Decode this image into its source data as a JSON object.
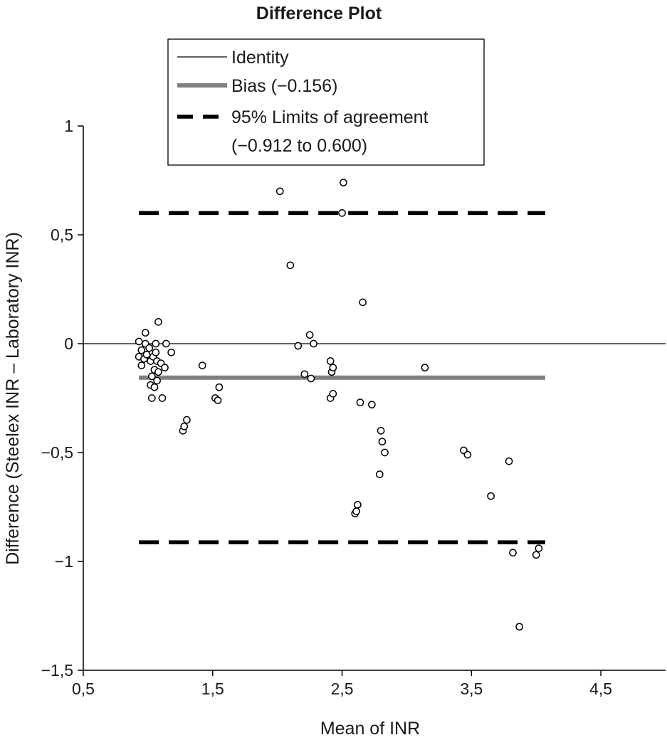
{
  "chart_data": {
    "type": "scatter",
    "title": "Difference Plot",
    "xlabel": "Mean of INR",
    "ylabel": "Difference (Steelex INR – Laboratory INR)",
    "xlim": [
      0.5,
      5.0
    ],
    "ylim": [
      -1.5,
      1.0
    ],
    "x_ticks": [
      0.5,
      1.5,
      2.5,
      3.5,
      4.5
    ],
    "x_tick_labels": [
      "0,5",
      "1,5",
      "2,5",
      "3,5",
      "4,5"
    ],
    "y_ticks": [
      1,
      0.5,
      0,
      -0.5,
      -1,
      -1.5
    ],
    "y_tick_labels": [
      "1",
      "0,5",
      "0",
      "−0,5",
      "−1",
      "−1,5"
    ],
    "grid": false,
    "legend_position": "top-center",
    "legend": [
      {
        "label": "Identity",
        "style": "thin-solid"
      },
      {
        "label": "Bias (−0.156)",
        "style": "thick-gray"
      },
      {
        "label": "95% Limits of agreement",
        "label_line2": "(−0.912 to 0.600)",
        "style": "dashed"
      }
    ],
    "reference_lines": {
      "identity": 0,
      "bias": -0.156,
      "loa_lower": -0.912,
      "loa_upper": 0.6,
      "x_range": [
        0.93,
        4.07
      ]
    },
    "colors": {
      "identity": "#000000",
      "bias": "#808080",
      "loa": "#000000",
      "marker": "#000000"
    },
    "points": [
      [
        0.93,
        0.01
      ],
      [
        0.93,
        -0.06
      ],
      [
        0.95,
        -0.03
      ],
      [
        0.95,
        -0.1
      ],
      [
        0.97,
        -0.07
      ],
      [
        0.98,
        0.0
      ],
      [
        0.98,
        0.05
      ],
      [
        0.99,
        -0.05
      ],
      [
        1.01,
        -0.02
      ],
      [
        1.02,
        -0.08
      ],
      [
        1.02,
        -0.19
      ],
      [
        1.03,
        -0.15
      ],
      [
        1.03,
        -0.25
      ],
      [
        1.04,
        -0.06
      ],
      [
        1.05,
        -0.12
      ],
      [
        1.05,
        -0.2
      ],
      [
        1.06,
        -0.04
      ],
      [
        1.06,
        0.0
      ],
      [
        1.07,
        -0.17
      ],
      [
        1.07,
        -0.08
      ],
      [
        1.08,
        -0.13
      ],
      [
        1.08,
        0.1
      ],
      [
        1.1,
        -0.09
      ],
      [
        1.11,
        -0.25
      ],
      [
        1.13,
        -0.11
      ],
      [
        1.14,
        0.0
      ],
      [
        1.18,
        -0.04
      ],
      [
        1.27,
        -0.4
      ],
      [
        1.28,
        -0.38
      ],
      [
        1.3,
        -0.35
      ],
      [
        1.42,
        -0.1
      ],
      [
        1.52,
        -0.25
      ],
      [
        1.54,
        -0.26
      ],
      [
        1.55,
        -0.2
      ],
      [
        2.02,
        0.7
      ],
      [
        2.1,
        0.36
      ],
      [
        2.16,
        -0.01
      ],
      [
        2.21,
        -0.14
      ],
      [
        2.25,
        0.04
      ],
      [
        2.26,
        -0.16
      ],
      [
        2.28,
        0.0
      ],
      [
        2.41,
        -0.08
      ],
      [
        2.41,
        -0.25
      ],
      [
        2.42,
        -0.13
      ],
      [
        2.43,
        -0.11
      ],
      [
        2.43,
        -0.23
      ],
      [
        2.51,
        0.74
      ],
      [
        2.5,
        0.6
      ],
      [
        2.6,
        -0.78
      ],
      [
        2.61,
        -0.77
      ],
      [
        2.62,
        -0.74
      ],
      [
        2.64,
        -0.27
      ],
      [
        2.66,
        0.19
      ],
      [
        2.73,
        -0.28
      ],
      [
        2.79,
        -0.6
      ],
      [
        2.8,
        -0.4
      ],
      [
        2.81,
        -0.45
      ],
      [
        2.83,
        -0.5
      ],
      [
        3.14,
        -0.11
      ],
      [
        3.44,
        -0.49
      ],
      [
        3.47,
        -0.51
      ],
      [
        3.65,
        -0.7
      ],
      [
        3.79,
        -0.54
      ],
      [
        3.82,
        -0.96
      ],
      [
        3.87,
        -1.3
      ],
      [
        4.0,
        -0.97
      ],
      [
        4.02,
        -0.94
      ]
    ]
  }
}
